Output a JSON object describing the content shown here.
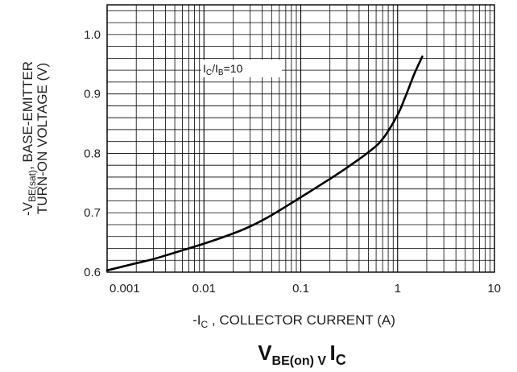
{
  "chart_data": {
    "type": "line",
    "title": {
      "main": "V",
      "sub1": "BE(on)",
      "mid": " V ",
      "main2": "I",
      "sub2": "C"
    },
    "xlabel": {
      "pre": "-I",
      "sub": "C",
      "post": " , COLLECTOR CURRENT (A)"
    },
    "ylabel": {
      "line1_pre": "-V",
      "line1_sub": "BE(sat)",
      "line1_post": ", BASE-EMITTER",
      "line2": "TURN-ON VOLTAGE (V)"
    },
    "x_scale": "log",
    "xlim": [
      0.001,
      10
    ],
    "ylim": [
      0.6,
      1.05
    ],
    "x_ticks": [
      0.001,
      0.01,
      0.1,
      1,
      10
    ],
    "x_tick_labels": [
      "0.001",
      "0.01",
      "0.1",
      "1",
      "10"
    ],
    "y_ticks": [
      0.6,
      0.7,
      0.8,
      0.9,
      1.0
    ],
    "y_tick_labels": [
      "0.6",
      "0.7",
      "0.8",
      "0.9",
      "1.0"
    ],
    "grid": true,
    "annotation": {
      "pre": "I",
      "sub1": "C",
      "mid": "/I",
      "sub2": "B",
      "post": "=10"
    },
    "series": [
      {
        "x": [
          0.001,
          0.002,
          0.003,
          0.005,
          0.01,
          0.02,
          0.03,
          0.05,
          0.1,
          0.2,
          0.3,
          0.5,
          0.7,
          1.0,
          1.2,
          1.5,
          1.8
        ],
        "y": [
          0.603,
          0.615,
          0.622,
          0.633,
          0.648,
          0.665,
          0.677,
          0.696,
          0.726,
          0.757,
          0.776,
          0.802,
          0.824,
          0.865,
          0.895,
          0.935,
          0.963
        ]
      }
    ],
    "colors": {
      "curve": "#000000",
      "grid": "#000000",
      "axis": "#000000"
    }
  }
}
